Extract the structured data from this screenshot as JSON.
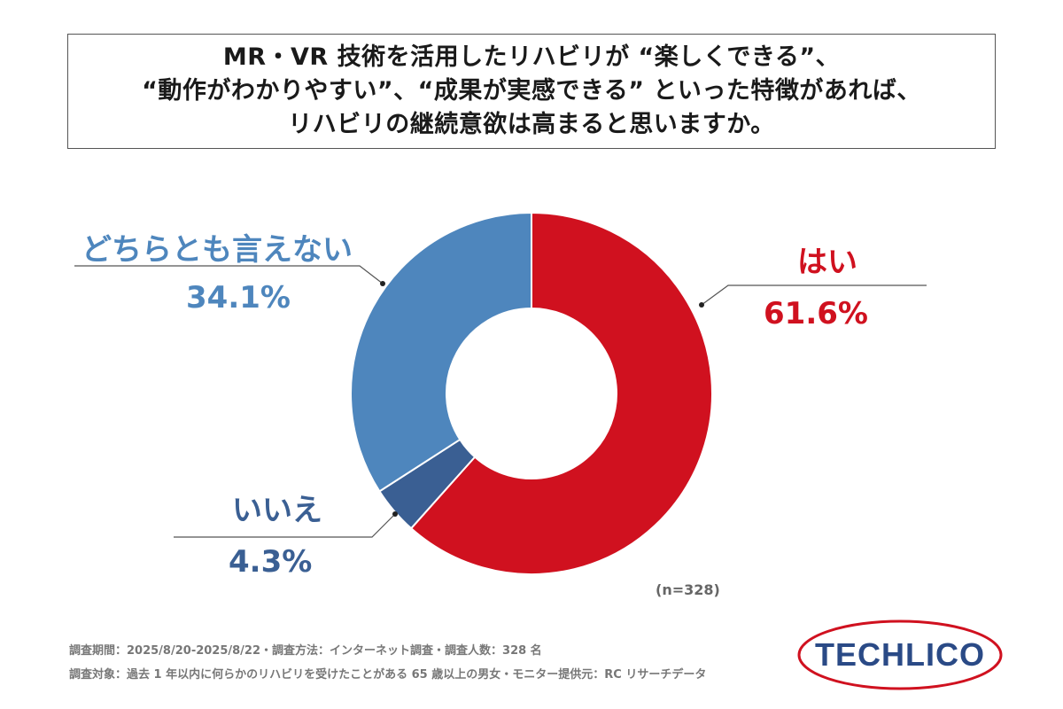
{
  "title": {
    "line1": "MR・VR 技術を活用したリハビリが “楽しくできる”、",
    "line2": "“動作がわかりやすい”、“成果が実感できる” といった特徴があれば、",
    "line3": "リハビリの継続意欲は高まると思いますか。"
  },
  "colors": {
    "yes": "#D0111F",
    "no": "#3A5F93",
    "neither": "#4E86BD",
    "leader": "#555555"
  },
  "chart_data": {
    "type": "pie",
    "variant": "donut",
    "slices": [
      {
        "label": "はい",
        "value": 61.6,
        "display": "61.6%"
      },
      {
        "label": "いいえ",
        "value": 4.3,
        "display": "4.3%"
      },
      {
        "label": "どちらとも言えない",
        "value": 34.1,
        "display": "34.1%"
      }
    ],
    "start_angle_deg": 0,
    "direction": "clockwise",
    "n_label": "(n=328)"
  },
  "footnotes": {
    "line1": "調査期間：2025/8/20-2025/8/22・調査方法：インターネット調査・調査人数：328 名",
    "line2": "調査対象：過去 1 年以内に何らかのリハビリを受けたことがある 65 歳以上の男女・モニター提供元：RC リサーチデータ"
  },
  "logo": {
    "text": "TECHLICO",
    "text_color": "#2A4A86",
    "ring_color": "#D0111F"
  }
}
